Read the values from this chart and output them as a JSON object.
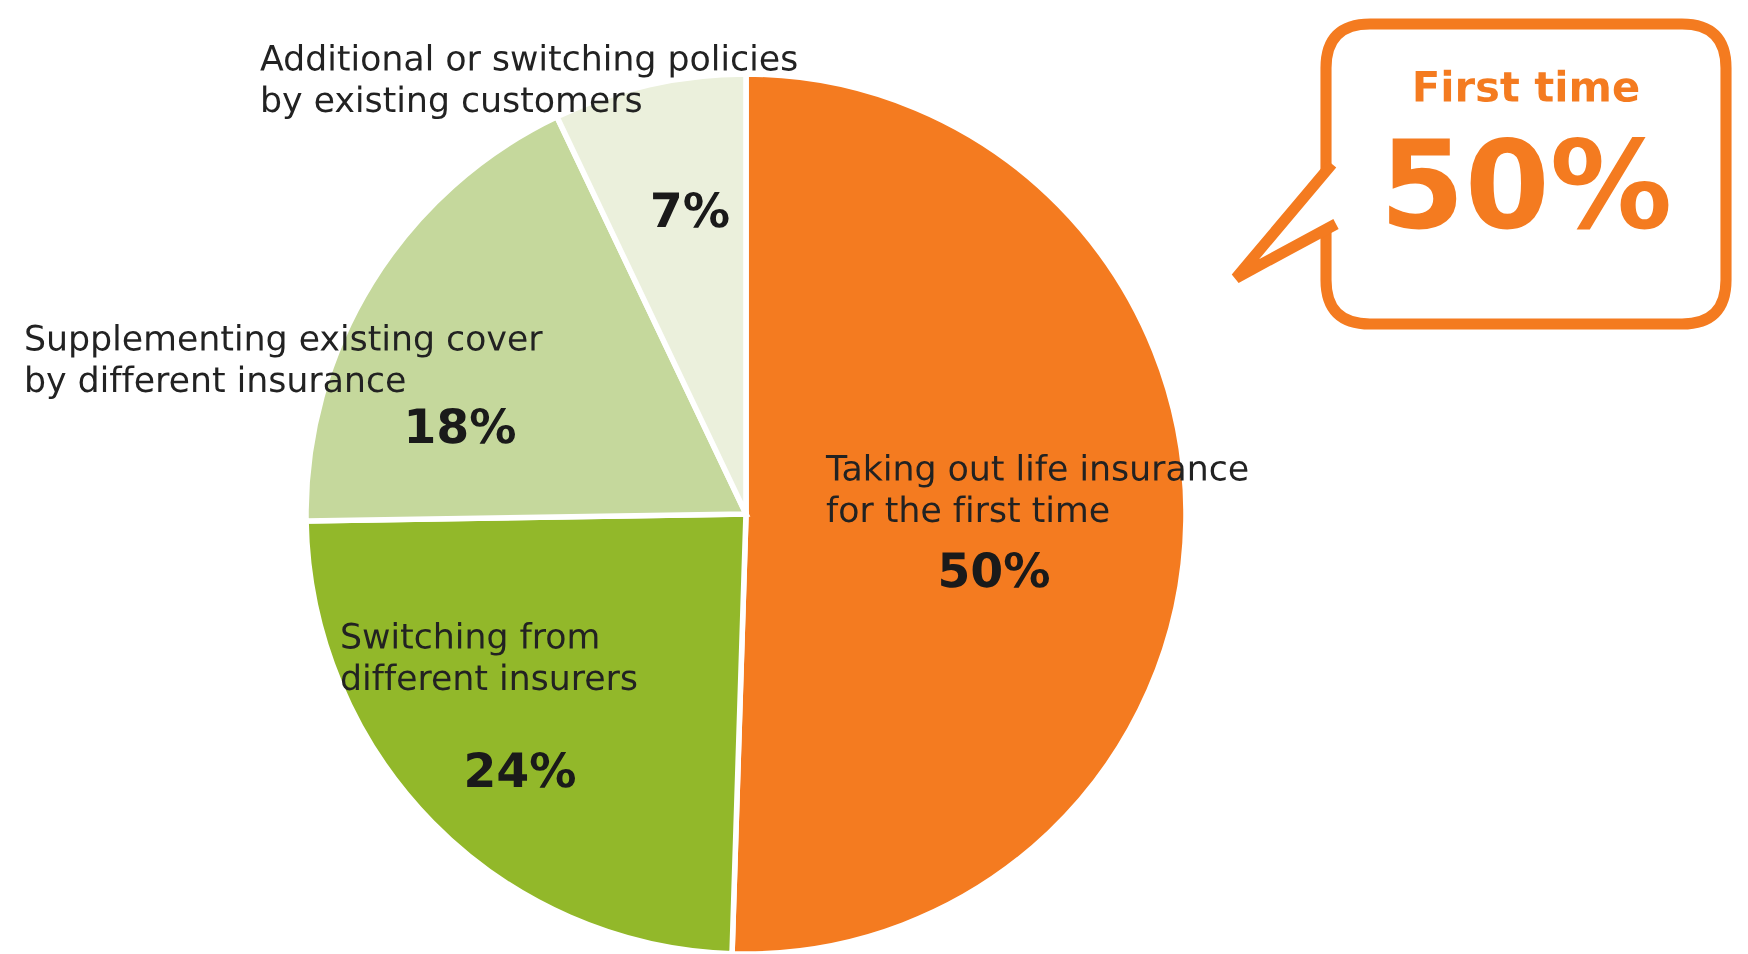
{
  "chart_data": {
    "type": "pie",
    "categories": [
      "Taking out life insurance\nfor the first time",
      "Switching from\ndifferent insurers",
      "Supplementing existing cover\nby different insurance",
      "Additional or switching policies\nby existing customers"
    ],
    "values": [
      50,
      24,
      18,
      7
    ],
    "colors": [
      "#f47b20",
      "#92b82a",
      "#c5d89c",
      "#ebf0dc"
    ],
    "value_labels": [
      "50%",
      "24%",
      "18%",
      "7%"
    ],
    "annotations": [
      "First time",
      "50%"
    ]
  }
}
